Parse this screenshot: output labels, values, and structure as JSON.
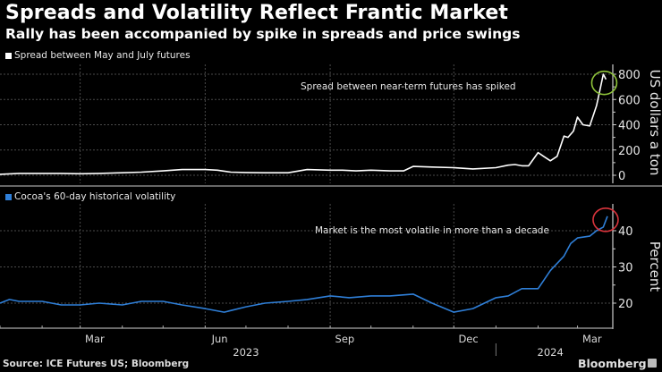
{
  "header": {
    "title": "Spreads and Volatility Reflect Frantic Market",
    "subtitle": "Rally has been accompanied by spike in spreads and price swings"
  },
  "footer": {
    "source": "Source: ICE Futures US; Bloomberg",
    "brand": "Bloomberg"
  },
  "colors": {
    "background": "#000000",
    "spread_line": "#ffffff",
    "volatility_line": "#2f7fd8",
    "spread_circle": "#8fc43a",
    "volatility_circle": "#d9343c",
    "grid": "#555555"
  },
  "chart_data": [
    {
      "type": "line",
      "title": "Spread between May and July futures",
      "legend": "Spread between May and July futures",
      "ylabel": "US dollars a ton",
      "ylim": [
        -20,
        850
      ],
      "yticks": [
        0,
        200,
        400,
        600,
        800
      ],
      "annotation": "Spread between near-term futures has spiked",
      "x_range": [
        "2023-01-01",
        "2024-03-25"
      ],
      "series": [
        {
          "name": "Spread between May and July futures",
          "x": [
            "2023-01-01",
            "2023-01-15",
            "2023-02-01",
            "2023-02-15",
            "2023-03-01",
            "2023-03-15",
            "2023-04-01",
            "2023-04-15",
            "2023-05-01",
            "2023-05-15",
            "2023-06-01",
            "2023-06-10",
            "2023-06-20",
            "2023-07-01",
            "2023-07-15",
            "2023-08-01",
            "2023-08-15",
            "2023-09-01",
            "2023-09-10",
            "2023-09-20",
            "2023-10-01",
            "2023-10-15",
            "2023-10-25",
            "2023-11-01",
            "2023-11-15",
            "2023-12-01",
            "2023-12-15",
            "2024-01-01",
            "2024-01-10",
            "2024-01-15",
            "2024-01-20",
            "2024-01-25",
            "2024-02-01",
            "2024-02-05",
            "2024-02-10",
            "2024-02-15",
            "2024-02-20",
            "2024-02-23",
            "2024-02-27",
            "2024-03-01",
            "2024-03-05",
            "2024-03-10",
            "2024-03-15",
            "2024-03-18",
            "2024-03-20",
            "2024-03-22"
          ],
          "values": [
            8,
            15,
            15,
            15,
            12,
            15,
            20,
            25,
            35,
            45,
            45,
            40,
            25,
            22,
            20,
            20,
            45,
            40,
            40,
            35,
            40,
            35,
            35,
            70,
            65,
            60,
            50,
            60,
            80,
            85,
            75,
            75,
            180,
            150,
            115,
            150,
            310,
            300,
            350,
            460,
            400,
            390,
            550,
            700,
            800,
            760
          ]
        }
      ]
    },
    {
      "type": "line",
      "title": "Cocoa's 60-day historical volatility",
      "legend": "Cocoa's 60-day historical volatility",
      "ylabel": "Percent",
      "ylim": [
        15,
        46
      ],
      "yticks": [
        20,
        30,
        40
      ],
      "annotation": "Market is the most volatile in more than a decade",
      "x_range": [
        "2023-01-01",
        "2024-03-25"
      ],
      "xticks": [
        "Mar",
        "Jun",
        "Sep",
        "Dec",
        "Mar"
      ],
      "year_labels": [
        "2023",
        "2024"
      ],
      "series": [
        {
          "name": "Cocoa's 60-day historical volatility",
          "x": [
            "2023-01-01",
            "2023-01-08",
            "2023-01-15",
            "2023-02-01",
            "2023-02-15",
            "2023-03-01",
            "2023-03-15",
            "2023-04-01",
            "2023-04-15",
            "2023-05-01",
            "2023-05-15",
            "2023-06-01",
            "2023-06-15",
            "2023-07-01",
            "2023-07-15",
            "2023-08-01",
            "2023-08-15",
            "2023-09-01",
            "2023-09-15",
            "2023-10-01",
            "2023-10-15",
            "2023-11-01",
            "2023-11-15",
            "2023-12-01",
            "2023-12-15",
            "2024-01-01",
            "2024-01-10",
            "2024-01-20",
            "2024-02-01",
            "2024-02-10",
            "2024-02-20",
            "2024-02-25",
            "2024-03-01",
            "2024-03-10",
            "2024-03-15",
            "2024-03-20",
            "2024-03-23"
          ],
          "values": [
            20,
            21,
            20.5,
            20.5,
            19.5,
            19.5,
            20,
            19.5,
            20.5,
            20.5,
            19.5,
            18.5,
            17.5,
            19,
            20,
            20.5,
            21,
            22,
            21.5,
            22,
            22,
            22.5,
            20,
            17.5,
            18.5,
            21.5,
            22,
            24,
            24,
            29,
            33,
            36.5,
            38,
            38.5,
            40,
            41,
            44
          ]
        }
      ]
    }
  ]
}
